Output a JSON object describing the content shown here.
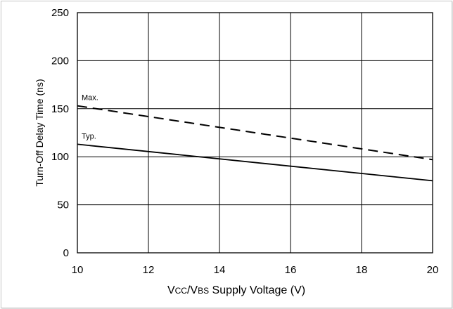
{
  "chart_data": {
    "type": "line",
    "xlim": [
      10,
      20
    ],
    "ylim": [
      0,
      250
    ],
    "x_ticks": [
      10,
      12,
      14,
      16,
      18,
      20
    ],
    "y_ticks": [
      0,
      50,
      100,
      150,
      200,
      250
    ],
    "x_tick_labels": [
      "10",
      "12",
      "14",
      "16",
      "18",
      "20"
    ],
    "y_tick_labels": [
      "0",
      "50",
      "100",
      "150",
      "200",
      "250"
    ],
    "ylabel": "Turn-Off Delay Time (ns)",
    "xlabel_parts": {
      "v1": "V",
      "s1": "CC",
      "slash": "/",
      "v2": "V",
      "s2": "BS",
      "rest": " Supply Voltage (V)"
    },
    "grid": true,
    "series": [
      {
        "name": "Max.",
        "style": "dashed",
        "color": "#000000",
        "x": [
          10,
          20
        ],
        "y": [
          153,
          97
        ]
      },
      {
        "name": "Typ.",
        "style": "solid",
        "color": "#000000",
        "x": [
          10,
          20
        ],
        "y": [
          113,
          75
        ]
      }
    ]
  }
}
